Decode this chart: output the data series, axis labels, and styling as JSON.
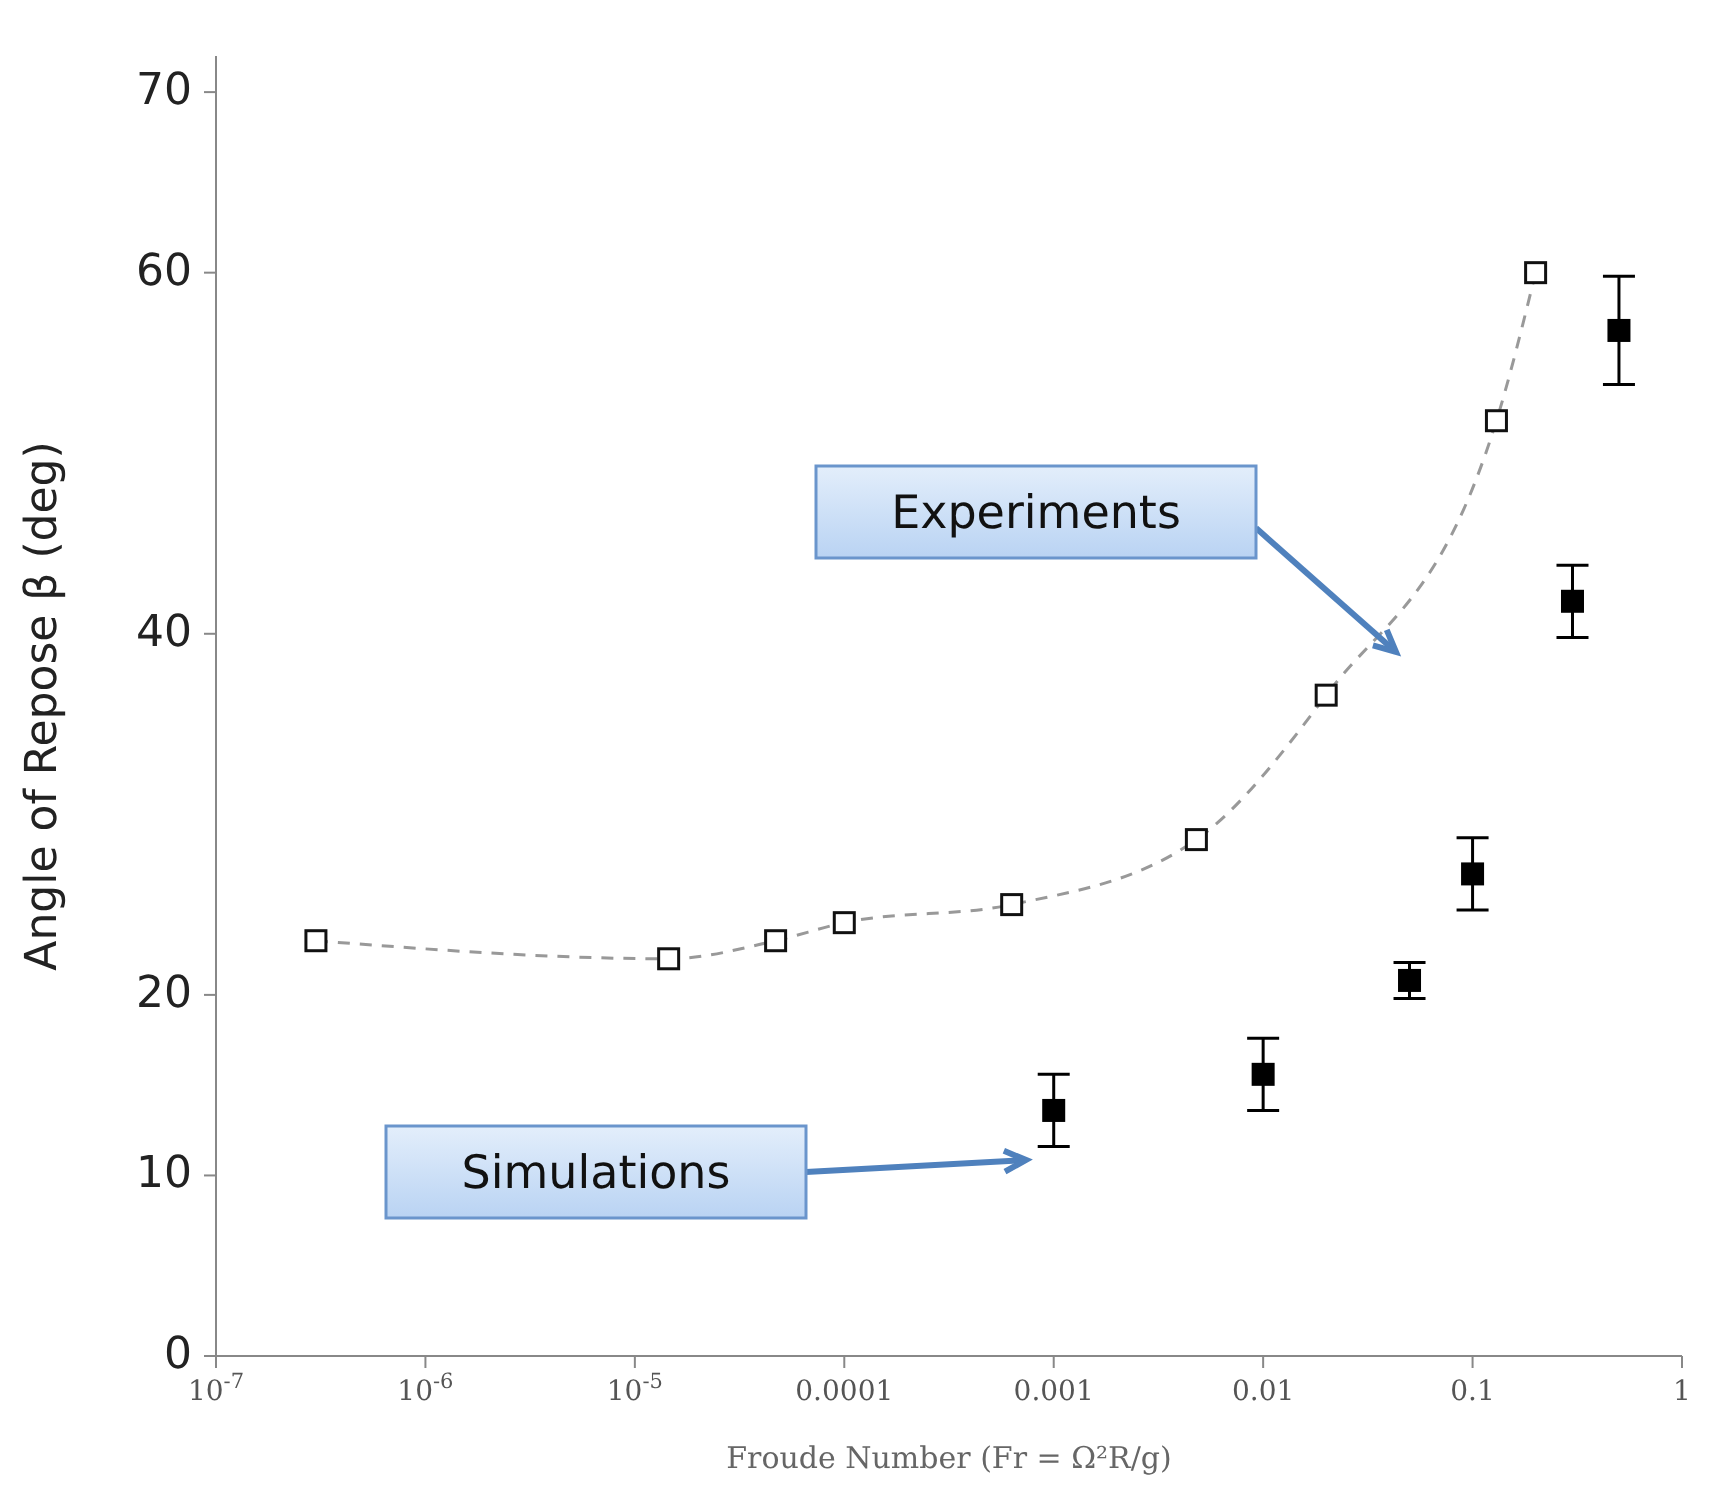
{
  "chart_data": {
    "type": "scatter",
    "xlabel": "Froude Number (Fr = Ω²R/g)",
    "ylabel": "Angle of Repose β (deg)",
    "log": "x",
    "xlim": [
      1e-07,
      1
    ],
    "xticks": [
      {
        "value": 1e-07,
        "label": "10$^{-7}$"
      },
      {
        "value": 1e-06,
        "label": "10$^{-6}$"
      },
      {
        "value": 1e-05,
        "label": "10$^{-5}$"
      },
      0.0001,
      0.001,
      0.01,
      0.1,
      1
    ],
    "ylim": [
      0,
      72
    ],
    "yticks": [
      0,
      10,
      20,
      40,
      60,
      70
    ],
    "marker": "square",
    "series": [
      {
        "type": "line",
        "line_style": "dashed",
        "color": "#999999",
        "x": [
          3e-07,
          1.45e-05,
          4.7e-05,
          0.0001,
          0.00063,
          0.0048,
          0.02,
          0.13,
          0.2
        ],
        "values": [
          23,
          22,
          23,
          24,
          25,
          28.6,
          36.6,
          51.8,
          60
        ]
      },
      {
        "color": "#000000",
        "x": [
          0.001,
          0.01,
          0.05,
          0.1,
          0.3,
          0.5
        ],
        "values": [
          13.6,
          15.6,
          20.8,
          26.7,
          41.8,
          56.8
        ],
        "errors": [
          2,
          2,
          1,
          2,
          2,
          3
        ]
      }
    ],
    "annotations": [
      "Experiments",
      "Simulations"
    ]
  }
}
